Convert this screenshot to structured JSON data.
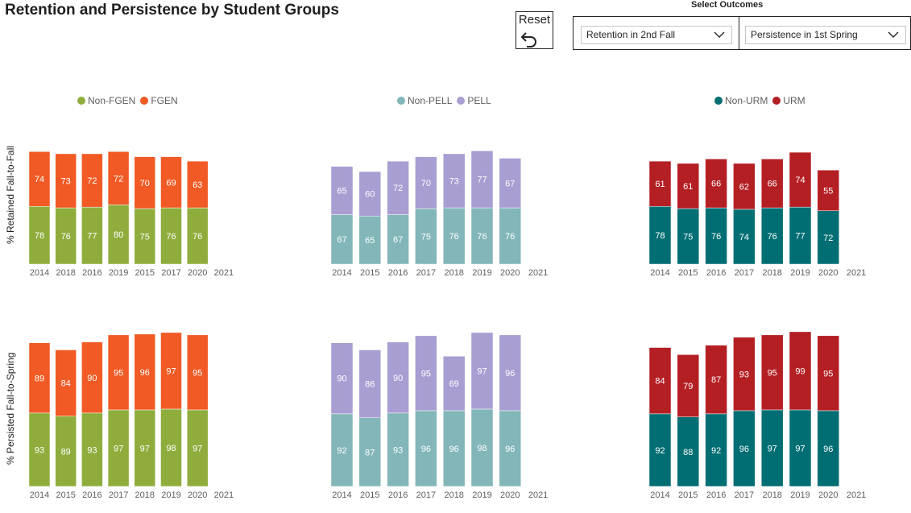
{
  "header": {
    "title": "Retention and Persistence by Student Groups",
    "reset_label": "Reset",
    "select_outcomes_label": "Select Outcomes",
    "dropdown_1_value": "Retention in 2nd Fall",
    "dropdown_2_value": "Persistence in 1st Spring"
  },
  "y_axis_labels": {
    "row1": "% Retained Fall-to-Fall",
    "row2": "% Persisted Fall-to-Spring"
  },
  "legends": [
    {
      "items": [
        {
          "label": "Non-FGEN",
          "color": "#8fad3c"
        },
        {
          "label": "FGEN",
          "color": "#f15a24"
        }
      ]
    },
    {
      "items": [
        {
          "label": "Non-PELL",
          "color": "#82b6b9"
        },
        {
          "label": "PELL",
          "color": "#a99ed2"
        }
      ]
    },
    {
      "items": [
        {
          "label": "Non-URM",
          "color": "#006e73"
        },
        {
          "label": "URM",
          "color": "#b41f24"
        }
      ]
    }
  ],
  "chart_data": [
    {
      "type": "bar",
      "stacked": true,
      "row": "Retained Fall-to-Fall",
      "group": "FGEN",
      "categories": [
        "2014",
        "2018",
        "2016",
        "2019",
        "2015",
        "2017",
        "2020",
        "2021"
      ],
      "series": [
        {
          "name": "Non-FGEN",
          "color": "#8fad3c",
          "values": [
            78,
            76,
            77,
            80,
            75,
            76,
            76,
            null
          ]
        },
        {
          "name": "FGEN",
          "color": "#f15a24",
          "values": [
            74,
            73,
            72,
            72,
            70,
            69,
            63,
            null
          ]
        }
      ]
    },
    {
      "type": "bar",
      "stacked": true,
      "row": "Retained Fall-to-Fall",
      "group": "PELL",
      "categories": [
        "2014",
        "2015",
        "2016",
        "2017",
        "2018",
        "2019",
        "2020",
        "2021"
      ],
      "series": [
        {
          "name": "Non-PELL",
          "color": "#82b6b9",
          "values": [
            67,
            65,
            67,
            75,
            76,
            76,
            76,
            null
          ]
        },
        {
          "name": "PELL",
          "color": "#a99ed2",
          "values": [
            65,
            60,
            72,
            70,
            73,
            77,
            67,
            null
          ]
        }
      ]
    },
    {
      "type": "bar",
      "stacked": true,
      "row": "Retained Fall-to-Fall",
      "group": "URM",
      "categories": [
        "2014",
        "2015",
        "2016",
        "2017",
        "2018",
        "2019",
        "2020",
        "2021"
      ],
      "series": [
        {
          "name": "Non-URM",
          "color": "#006e73",
          "values": [
            78,
            75,
            76,
            74,
            76,
            77,
            72,
            null
          ]
        },
        {
          "name": "URM",
          "color": "#b41f24",
          "values": [
            61,
            61,
            66,
            62,
            66,
            74,
            55,
            null
          ]
        }
      ]
    },
    {
      "type": "bar",
      "stacked": true,
      "row": "Persisted Fall-to-Spring",
      "group": "FGEN",
      "categories": [
        "2014",
        "2015",
        "2016",
        "2017",
        "2018",
        "2019",
        "2020",
        "2021"
      ],
      "series": [
        {
          "name": "Non-FGEN",
          "color": "#8fad3c",
          "values": [
            93,
            89,
            93,
            97,
            97,
            98,
            97,
            null
          ]
        },
        {
          "name": "FGEN",
          "color": "#f15a24",
          "values": [
            89,
            84,
            90,
            95,
            96,
            97,
            95,
            null
          ]
        }
      ]
    },
    {
      "type": "bar",
      "stacked": true,
      "row": "Persisted Fall-to-Spring",
      "group": "PELL",
      "categories": [
        "2014",
        "2015",
        "2016",
        "2017",
        "2018",
        "2019",
        "2020",
        "2021"
      ],
      "series": [
        {
          "name": "Non-PELL",
          "color": "#82b6b9",
          "values": [
            92,
            87,
            93,
            96,
            96,
            98,
            96,
            null
          ]
        },
        {
          "name": "PELL",
          "color": "#a99ed2",
          "values": [
            90,
            86,
            90,
            95,
            69,
            97,
            96,
            null
          ]
        }
      ]
    },
    {
      "type": "bar",
      "stacked": true,
      "row": "Persisted Fall-to-Spring",
      "group": "URM",
      "categories": [
        "2014",
        "2015",
        "2016",
        "2017",
        "2018",
        "2019",
        "2020",
        "2021"
      ],
      "series": [
        {
          "name": "Non-URM",
          "color": "#006e73",
          "values": [
            92,
            88,
            92,
            96,
            97,
            97,
            96,
            null
          ]
        },
        {
          "name": "URM",
          "color": "#b41f24",
          "values": [
            84,
            79,
            87,
            93,
            95,
            99,
            95,
            null
          ]
        }
      ]
    }
  ]
}
